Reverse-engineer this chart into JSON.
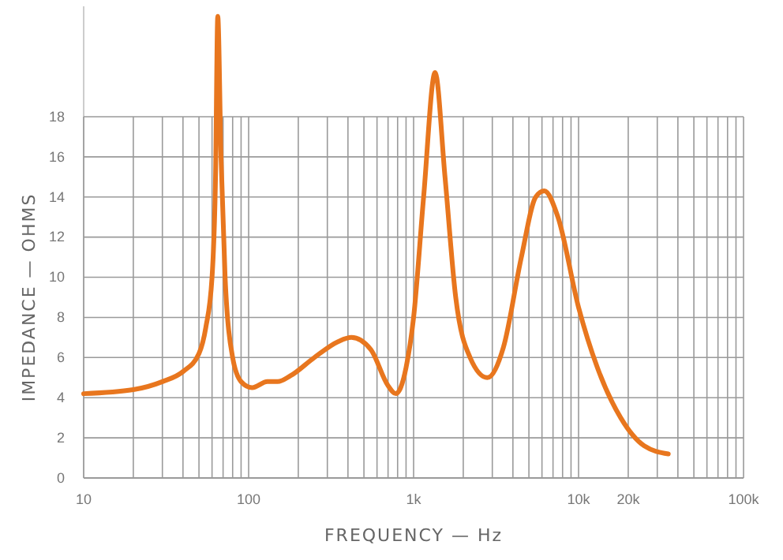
{
  "chart_data": {
    "type": "line",
    "xlabel": "FREQUENCY — Hz",
    "ylabel": "IMPEDANCE — OHMS",
    "log": "x",
    "grid": true,
    "marker": "none",
    "line_style": "solid",
    "xlim": [
      10,
      100000
    ],
    "ylim": [
      0,
      23.5
    ],
    "xticks": [
      10,
      {
        "value": 20,
        "label": null
      },
      {
        "value": 30,
        "label": null
      },
      {
        "value": 40,
        "label": null
      },
      {
        "value": 50,
        "label": null
      },
      {
        "value": 60,
        "label": null
      },
      {
        "value": 70,
        "label": null
      },
      {
        "value": 80,
        "label": null
      },
      {
        "value": 90,
        "label": null
      },
      100,
      {
        "value": 200,
        "label": null
      },
      {
        "value": 300,
        "label": null
      },
      {
        "value": 400,
        "label": null
      },
      {
        "value": 500,
        "label": null
      },
      {
        "value": 600,
        "label": null
      },
      {
        "value": 700,
        "label": null
      },
      {
        "value": 800,
        "label": null
      },
      {
        "value": 900,
        "label": null
      },
      {
        "value": 1000,
        "label": "1k"
      },
      {
        "value": 2000,
        "label": null
      },
      {
        "value": 3000,
        "label": null
      },
      {
        "value": 4000,
        "label": null
      },
      {
        "value": 5000,
        "label": null
      },
      {
        "value": 6000,
        "label": null
      },
      {
        "value": 7000,
        "label": null
      },
      {
        "value": 8000,
        "label": null
      },
      {
        "value": 9000,
        "label": null
      },
      {
        "value": 10000,
        "label": "10k"
      },
      {
        "value": 20000,
        "label": "20k"
      },
      {
        "value": 30000,
        "label": null
      },
      {
        "value": 40000,
        "label": null
      },
      {
        "value": 50000,
        "label": null
      },
      {
        "value": 60000,
        "label": null
      },
      {
        "value": 70000,
        "label": null
      },
      {
        "value": 80000,
        "label": null
      },
      {
        "value": 90000,
        "label": null
      },
      {
        "value": 100000,
        "label": "100k"
      }
    ],
    "yticks": [
      0,
      2,
      4,
      6,
      8,
      10,
      12,
      14,
      16,
      18
    ],
    "series": [
      {
        "color": "#e8761e",
        "x": [
          10,
          20,
          30,
          40,
          50,
          55,
          60,
          63,
          65,
          68,
          72,
          80,
          90,
          105,
          130,
          150,
          180,
          250,
          350,
          420,
          550,
          700,
          780,
          900,
          1000,
          1150,
          1350,
          1550,
          1800,
          2200,
          2800,
          3500,
          4500,
          5500,
          6200,
          7500,
          10000,
          13000,
          18000,
          25000,
          35000
        ],
        "values": [
          4.2,
          4.4,
          4.8,
          5.3,
          6.2,
          7.5,
          10,
          15,
          23,
          16,
          10,
          6,
          4.8,
          4.5,
          4.8,
          4.8,
          5.1,
          6,
          6.8,
          7,
          6.4,
          4.6,
          4.2,
          5.5,
          8,
          14,
          20.2,
          15,
          9,
          6,
          5,
          6.5,
          11,
          14,
          14.3,
          13,
          8.5,
          5.5,
          3,
          1.6,
          1.2
        ]
      }
    ]
  }
}
